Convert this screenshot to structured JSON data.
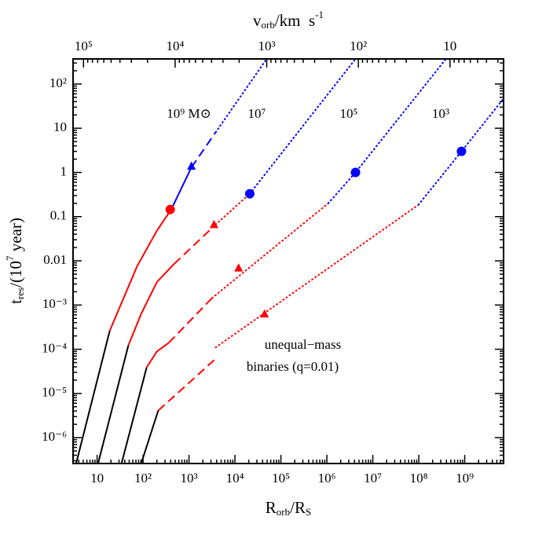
{
  "chart_data": {
    "type": "line",
    "log_x": true,
    "log_y": true,
    "x_label": [
      "R",
      "orb",
      "/R",
      "S"
    ],
    "y_label": [
      "t",
      "res",
      "/(10",
      "7",
      " year)"
    ],
    "x2_label": [
      "v",
      "orb",
      "/km  s",
      "-1"
    ],
    "xlim": [
      3,
      7000000000
    ],
    "ylim": [
      2.6e-07,
      370
    ],
    "xticks": [
      10,
      {
        "value": 100,
        "label": "10²"
      },
      {
        "value": 1000,
        "label": "10³"
      },
      {
        "value": 10000,
        "label": "10⁴"
      },
      {
        "value": 100000,
        "label": "10⁵"
      },
      {
        "value": 1000000,
        "label": "10⁶"
      },
      {
        "value": 10000000,
        "label": "10⁷"
      },
      {
        "value": 100000000,
        "label": "10⁸"
      },
      {
        "value": 1000000000,
        "label": "10⁹"
      }
    ],
    "yticks": [
      {
        "value": 1e-06,
        "label": "10⁻⁶"
      },
      {
        "value": 1e-05,
        "label": "10⁻⁵"
      },
      {
        "value": 0.0001,
        "label": "10⁻⁴"
      },
      {
        "value": 0.001,
        "label": "10⁻³"
      },
      0.01,
      0.1,
      1,
      10,
      {
        "value": 100,
        "label": "10²"
      }
    ],
    "x2lim": [
      130000,
      2.6
    ],
    "x2ticks": [
      {
        "value": 100000,
        "label": "10⁵"
      },
      {
        "value": 10000,
        "label": "10⁴"
      },
      {
        "value": 1000,
        "label": "10³"
      },
      {
        "value": 100,
        "label": "10²"
      },
      10
    ],
    "annotations": [
      {
        "text": "10⁹ M⊙",
        "x": 1000,
        "y": 20
      },
      {
        "text": "10⁷",
        "x": 30000,
        "y": 20
      },
      {
        "text": "10⁵",
        "x": 3000000,
        "y": 20
      },
      {
        "text": "10³",
        "x": 300000000,
        "y": 20
      },
      {
        "text": "unequal−mass",
        "x": 300000,
        "y": 0.00012
      },
      {
        "text": "binaries (q=0.01)",
        "x": 180000,
        "y": 3.8e-05
      }
    ],
    "series": [
      {
        "color": "#000000",
        "style": "solid",
        "x": [
          3.5,
          18.8
        ],
        "values": [
          2.6e-07,
          0.00026
        ]
      },
      {
        "color": "#ff0000",
        "style": "solid",
        "x": [
          18.8,
          74,
          200,
          410
        ],
        "values": [
          0.00026,
          0.0075,
          0.048,
          0.145
        ]
      },
      {
        "color": "#0000ff",
        "style": "solid",
        "x": [
          410,
          1130
        ],
        "values": [
          0.145,
          1.3
        ]
      },
      {
        "color": "#0000ff",
        "style": "dashed",
        "x": [
          1130,
          3800
        ],
        "values": [
          1.3,
          8.1
        ]
      },
      {
        "color": "#0000ff",
        "style": "dotted",
        "x": [
          3800,
          49000
        ],
        "values": [
          8.1,
          370
        ]
      },
      {
        "color": "#ff0000",
        "style": "circle",
        "x": [
          390
        ],
        "values": [
          0.145
        ]
      },
      {
        "color": "#0000ff",
        "style": "triangle",
        "x": [
          1130
        ],
        "values": [
          1.39
        ]
      },
      {
        "color": "#000000",
        "style": "solid",
        "x": [
          10.5,
          48
        ],
        "values": [
          2.6e-07,
          0.000123
        ]
      },
      {
        "color": "#ff0000",
        "style": "solid",
        "x": [
          48,
          91,
          200,
          473
        ],
        "values": [
          0.000123,
          0.00063,
          0.0033,
          0.0085
        ]
      },
      {
        "color": "#ff0000",
        "style": "dashed",
        "x": [
          473,
          3800
        ],
        "values": [
          0.0085,
          0.066
        ]
      },
      {
        "color": "#ff0000",
        "style": "dotted",
        "x": [
          3800,
          21000
        ],
        "values": [
          0.066,
          0.33
        ]
      },
      {
        "color": "#0000ff",
        "style": "dotted",
        "x": [
          21000,
          4200000
        ],
        "values": [
          0.33,
          370
        ]
      },
      {
        "color": "#ff0000",
        "style": "triangle",
        "x": [
          3500
        ],
        "values": [
          0.066
        ]
      },
      {
        "color": "#0000ff",
        "style": "circle",
        "x": [
          21000
        ],
        "values": [
          0.33
        ]
      },
      {
        "color": "#000000",
        "style": "solid",
        "x": [
          34,
          120
        ],
        "values": [
          2.6e-07,
          3.9e-05
        ]
      },
      {
        "color": "#ff0000",
        "style": "solid",
        "x": [
          120,
          200,
          363
        ],
        "values": [
          3.9e-05,
          8.9e-05,
          0.00014
        ]
      },
      {
        "color": "#ff0000",
        "style": "dashed",
        "x": [
          363,
          3200
        ],
        "values": [
          0.00014,
          0.00145
        ]
      },
      {
        "color": "#ff0000",
        "style": "dotted",
        "x": [
          3200,
          1070000
        ],
        "values": [
          0.00145,
          0.2
        ]
      },
      {
        "color": "#0000ff",
        "style": "dotted",
        "x": [
          1070000,
          4200000,
          390000000
        ],
        "values": [
          0.2,
          1,
          370
        ]
      },
      {
        "color": "#ff0000",
        "style": "triangle",
        "x": [
          12000
        ],
        "values": [
          0.0069
        ]
      },
      {
        "color": "#0000ff",
        "style": "circle",
        "x": [
          4200000
        ],
        "values": [
          1
        ]
      },
      {
        "color": "#000000",
        "style": "solid",
        "x": [
          91,
          214
        ],
        "values": [
          2.6e-07,
          4.1e-06
        ]
      },
      {
        "color": "#ff0000",
        "style": "dashed",
        "x": [
          214,
          3800
        ],
        "values": [
          4.1e-06,
          6.1e-05
        ]
      },
      {
        "color": "#ff0000",
        "style": "dotted",
        "x": [
          3800,
          98000000
        ],
        "values": [
          0.00011,
          0.185
        ]
      },
      {
        "color": "#0000ff",
        "style": "dotted",
        "x": [
          98000000,
          850000000,
          6900000000
        ],
        "values": [
          0.185,
          3,
          46
        ]
      },
      {
        "color": "#ff0000",
        "style": "triangle",
        "x": [
          44000
        ],
        "values": [
          0.00063
        ]
      },
      {
        "color": "#0000ff",
        "style": "circle",
        "x": [
          850000000
        ],
        "values": [
          3
        ]
      }
    ]
  }
}
